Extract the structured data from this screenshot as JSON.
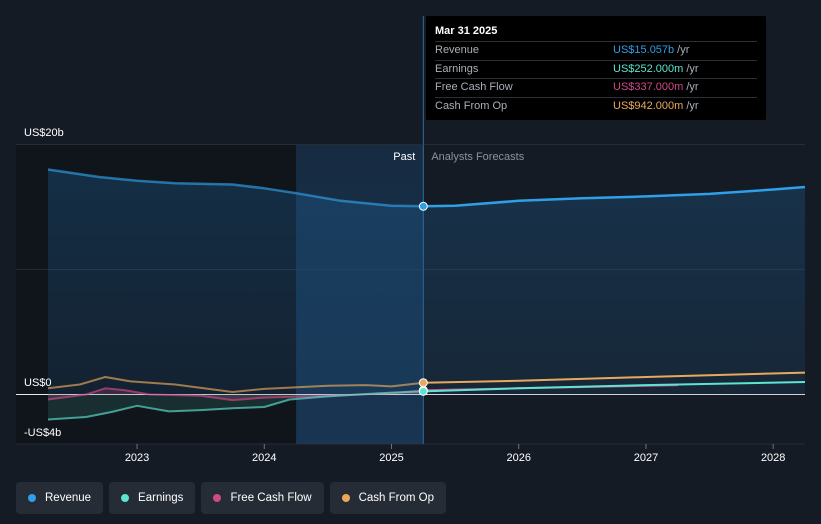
{
  "chart_data": {
    "type": "line",
    "x_ticks": [
      "2023",
      "2024",
      "2025",
      "2026",
      "2027",
      "2028"
    ],
    "y_ticks": [
      "US$20b",
      "US$0",
      "-US$4b"
    ],
    "ylim": [
      -4,
      20
    ],
    "period_labels": {
      "past": "Past",
      "forecast": "Analysts Forecasts"
    },
    "divider_date": 2025.25,
    "series": [
      {
        "name": "Revenue",
        "color": "#2f9fe8",
        "points": [
          [
            2022.3,
            18.0
          ],
          [
            2022.7,
            17.4
          ],
          [
            2023.0,
            17.1
          ],
          [
            2023.3,
            16.9
          ],
          [
            2023.75,
            16.8
          ],
          [
            2024.0,
            16.5
          ],
          [
            2024.25,
            16.1
          ],
          [
            2024.6,
            15.5
          ],
          [
            2025.0,
            15.1
          ],
          [
            2025.25,
            15.057
          ],
          [
            2025.5,
            15.1
          ],
          [
            2026.0,
            15.5
          ],
          [
            2026.5,
            15.7
          ],
          [
            2027.0,
            15.85
          ],
          [
            2027.5,
            16.05
          ],
          [
            2028.0,
            16.4
          ],
          [
            2028.25,
            16.6
          ]
        ]
      },
      {
        "name": "Earnings",
        "color": "#5ce5cf",
        "points": [
          [
            2022.3,
            -2.0
          ],
          [
            2022.6,
            -1.8
          ],
          [
            2022.8,
            -1.4
          ],
          [
            2023.0,
            -0.9
          ],
          [
            2023.25,
            -1.35
          ],
          [
            2023.5,
            -1.25
          ],
          [
            2023.75,
            -1.1
          ],
          [
            2024.0,
            -1.0
          ],
          [
            2024.2,
            -0.4
          ],
          [
            2024.5,
            -0.15
          ],
          [
            2025.0,
            0.15
          ],
          [
            2025.25,
            0.252
          ],
          [
            2026.0,
            0.5
          ],
          [
            2027.0,
            0.75
          ],
          [
            2028.25,
            1.0
          ]
        ]
      },
      {
        "name": "Free Cash Flow",
        "color": "#cf4a88",
        "points": [
          [
            2022.3,
            -0.4
          ],
          [
            2022.6,
            0.0
          ],
          [
            2022.75,
            0.5
          ],
          [
            2022.9,
            0.35
          ],
          [
            2023.1,
            0.0
          ],
          [
            2023.5,
            -0.1
          ],
          [
            2023.75,
            -0.45
          ],
          [
            2024.0,
            -0.25
          ],
          [
            2024.5,
            -0.1
          ],
          [
            2025.0,
            0.1
          ],
          [
            2025.25,
            0.337
          ],
          [
            2026.0,
            0.5
          ],
          [
            2027.25,
            0.75
          ]
        ]
      },
      {
        "name": "Cash From Op",
        "color": "#e9a95d",
        "points": [
          [
            2022.3,
            0.5
          ],
          [
            2022.55,
            0.8
          ],
          [
            2022.75,
            1.4
          ],
          [
            2022.95,
            1.05
          ],
          [
            2023.3,
            0.8
          ],
          [
            2023.75,
            0.2
          ],
          [
            2024.0,
            0.45
          ],
          [
            2024.5,
            0.7
          ],
          [
            2024.8,
            0.75
          ],
          [
            2025.0,
            0.65
          ],
          [
            2025.25,
            0.942
          ],
          [
            2026.0,
            1.1
          ],
          [
            2027.0,
            1.4
          ],
          [
            2028.25,
            1.75
          ]
        ]
      }
    ]
  },
  "tooltip": {
    "date": "Mar 31 2025",
    "rows": [
      {
        "name": "Revenue",
        "value": "US$15.057b",
        "unit": "/yr",
        "color": "#2f9fe8"
      },
      {
        "name": "Earnings",
        "value": "US$252.000m",
        "unit": "/yr",
        "color": "#5ce5cf"
      },
      {
        "name": "Free Cash Flow",
        "value": "US$337.000m",
        "unit": "/yr",
        "color": "#cf4a88"
      },
      {
        "name": "Cash From Op",
        "value": "US$942.000m",
        "unit": "/yr",
        "color": "#e9a95d"
      }
    ]
  },
  "legend": [
    {
      "label": "Revenue",
      "color": "#2f9fe8"
    },
    {
      "label": "Earnings",
      "color": "#5ce5cf"
    },
    {
      "label": "Free Cash Flow",
      "color": "#cf4a88"
    },
    {
      "label": "Cash From Op",
      "color": "#e9a95d"
    }
  ]
}
